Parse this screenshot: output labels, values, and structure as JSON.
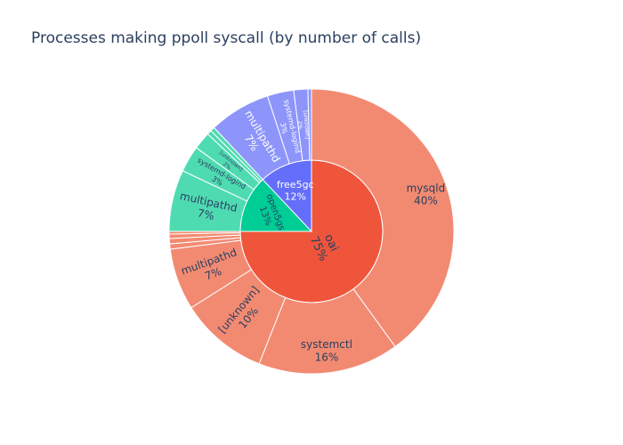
{
  "chart_data": {
    "type": "sunburst",
    "title": "Processes making ppoll syscall (by number of calls)",
    "start_angle_deg": 90,
    "direction": "clockwise",
    "nodes": [
      {
        "name": "oai",
        "percent_label": "75%",
        "value": 75,
        "color": "#ef553b",
        "children": [
          {
            "name": "mysqld",
            "percent_label": "40%",
            "value": 40,
            "color": "#f28a72"
          },
          {
            "name": "systemctl",
            "percent_label": "16%",
            "value": 16,
            "color": "#f28a72"
          },
          {
            "name": "[unknown]",
            "percent_label": "10%",
            "value": 10,
            "color": "#f28a72"
          },
          {
            "name": "multipathd",
            "percent_label": "7%",
            "value": 7,
            "color": "#f28a72"
          },
          {
            "name": "",
            "percent_label": "",
            "value": 0.6,
            "color": "#f28a72"
          },
          {
            "name": "",
            "percent_label": "",
            "value": 0.6,
            "color": "#f28a72"
          },
          {
            "name": "",
            "percent_label": "",
            "value": 0.5,
            "color": "#f28a72"
          },
          {
            "name": "",
            "percent_label": "",
            "value": 0.3,
            "color": "#f28a72"
          }
        ]
      },
      {
        "name": "open5gs",
        "percent_label": "13%",
        "value": 13,
        "color": "#00cc96",
        "children": [
          {
            "name": "multipathd",
            "percent_label": "7%",
            "value": 7,
            "color": "#4fdbb2"
          },
          {
            "name": "systemd-logind",
            "percent_label": "3%",
            "value": 3,
            "color": "#4fdbb2"
          },
          {
            "name": "[unknown]",
            "percent_label": "2%",
            "value": 2,
            "color": "#4fdbb2"
          },
          {
            "name": "",
            "percent_label": "",
            "value": 0.5,
            "color": "#4fdbb2"
          },
          {
            "name": "",
            "percent_label": "",
            "value": 0.5,
            "color": "#4fdbb2"
          }
        ]
      },
      {
        "name": "free5gc",
        "percent_label": "12%",
        "value": 12,
        "color": "#636efa",
        "children": [
          {
            "name": "multipathd",
            "percent_label": "7%",
            "value": 7,
            "color": "#8d95fb"
          },
          {
            "name": "systemd-logind",
            "percent_label": "3%",
            "value": 3,
            "color": "#8d95fb"
          },
          {
            "name": "[unknown]",
            "percent_label": "2%",
            "value": 1.6,
            "color": "#8d95fb"
          },
          {
            "name": "",
            "percent_label": "",
            "value": 0.4,
            "color": "#8d95fb"
          }
        ]
      }
    ]
  }
}
